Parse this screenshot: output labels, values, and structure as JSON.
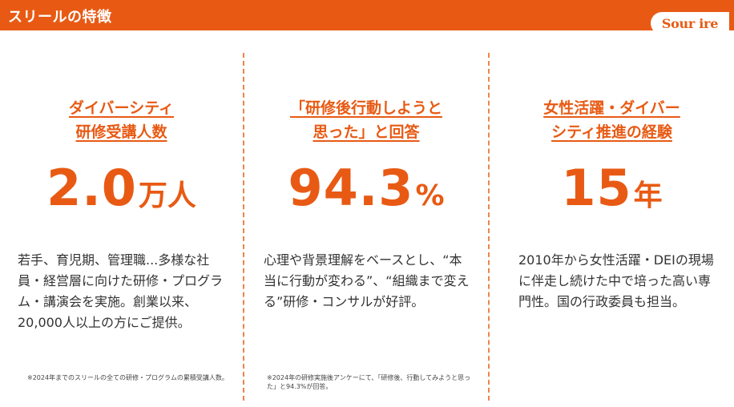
{
  "header": {
    "title": "スリールの特徴",
    "logo_text": "Sour ire"
  },
  "columns": [
    {
      "heading_line1": "ダイバーシティ",
      "heading_line2": "研修受講人数",
      "value": "2.0",
      "unit": "万人",
      "body": "若手、育児期、管理職...多様な社員・経営層に向けた研修・プログラム・講演会を実施。創業以来、20,000人以上の方にご提供。",
      "note": "※2024年までのスリールの全ての研修・プログラムの累積受講人数。"
    },
    {
      "heading_line1": "「研修後行動しようと",
      "heading_line2": "思った」と回答",
      "value": "94.3",
      "unit": "%",
      "body": "心理や背景理解をベースとし、“本当に行動が変わる”、“組織まで変える”研修・コンサルが好評。",
      "note": "※2024年の研修実施後アンケーにて、「研修後、行動してみようと思った」と94.3%が回答。"
    },
    {
      "heading_line1": "女性活躍・ダイバー",
      "heading_line2": "シティ推進の経験",
      "value": "15",
      "unit": "年",
      "body": "2010年から女性活躍・DEIの現場に伴走し続けた中で培った高い専門性。国の行政委員も担当。",
      "note": ""
    }
  ],
  "colors": {
    "accent": "#e85a14",
    "divider": "#f0834c",
    "text": "#333333"
  }
}
